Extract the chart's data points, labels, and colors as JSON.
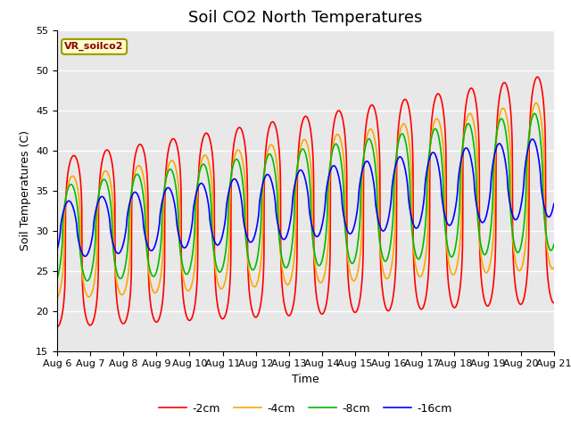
{
  "title": "Soil CO2 North Temperatures",
  "xlabel": "Time",
  "ylabel": "Soil Temperatures (C)",
  "ylim": [
    15,
    55
  ],
  "annotation": "VR_soilco2",
  "legend": [
    "-2cm",
    "-4cm",
    "-8cm",
    "-16cm"
  ],
  "colors": [
    "#ff0000",
    "#ffa500",
    "#00bb00",
    "#0000ff"
  ],
  "background_color": "#e8e8e8",
  "xtick_labels": [
    "Aug 6",
    "Aug 7",
    "Aug 8",
    "Aug 9",
    "Aug 10",
    "Aug 11",
    "Aug 12",
    "Aug 13",
    "Aug 14",
    "Aug 15",
    "Aug 16",
    "Aug 17",
    "Aug 18",
    "Aug 19",
    "Aug 20",
    "Aug 21"
  ],
  "title_fontsize": 13,
  "axis_label_fontsize": 9,
  "tick_fontsize": 8
}
